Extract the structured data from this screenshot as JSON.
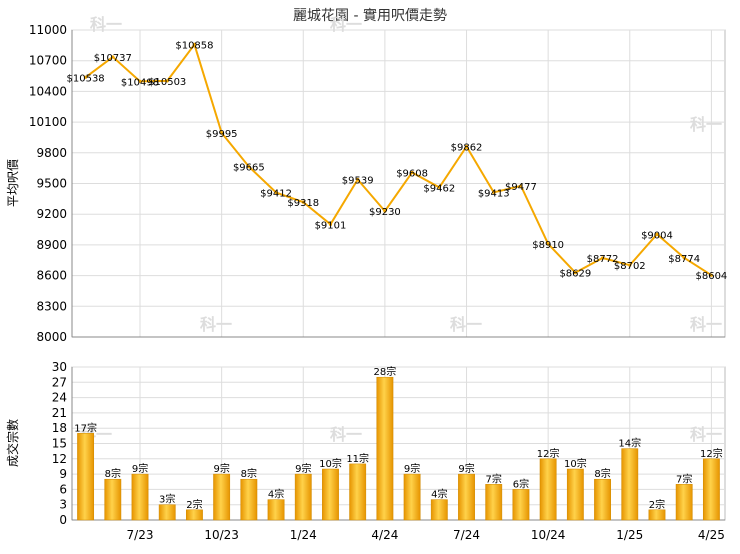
{
  "title": "麗城花園 - 實用呎價走勢",
  "chart_data": [
    {
      "type": "line",
      "ylabel": "平均呎價",
      "ylim": [
        8000,
        11000
      ],
      "yticks": [
        8000,
        8300,
        8600,
        8900,
        9200,
        9500,
        9800,
        10100,
        10400,
        10700,
        11000
      ],
      "color": "#f5a800",
      "values": [
        10538,
        10737,
        10498,
        10503,
        10858,
        9995,
        9665,
        9412,
        9318,
        9101,
        9539,
        9230,
        9608,
        9462,
        9862,
        9413,
        9477,
        8910,
        8629,
        8772,
        8702,
        9004,
        8774,
        8604
      ],
      "point_labels": [
        "$10538",
        "$10737",
        "$10498",
        "$10503",
        "$10858",
        "$9995",
        "$9665",
        "$9412",
        "$9318",
        "$9101",
        "$9539",
        "$9230",
        "$9608",
        "$9462",
        "$9862",
        "$9413",
        "$9477",
        "$8910",
        "$8629",
        "$8772",
        "$8702",
        "$9004",
        "$8774",
        "$8604"
      ]
    },
    {
      "type": "bar",
      "ylabel": "成交宗數",
      "ylim": [
        0,
        30
      ],
      "yticks": [
        0,
        3,
        6,
        9,
        12,
        15,
        18,
        21,
        24,
        27,
        30
      ],
      "color": "#f5a800",
      "values": [
        17,
        8,
        9,
        3,
        2,
        9,
        8,
        4,
        9,
        10,
        11,
        28,
        9,
        4,
        9,
        7,
        6,
        12,
        10,
        8,
        14,
        2,
        7,
        12
      ],
      "bar_labels": [
        "17宗",
        "8宗",
        "9宗",
        "3宗",
        "2宗",
        "9宗",
        "8宗",
        "4宗",
        "9宗",
        "10宗",
        "11宗",
        "28宗",
        "9宗",
        "4宗",
        "9宗",
        "7宗",
        "6宗",
        "12宗",
        "10宗",
        "8宗",
        "14宗",
        "2宗",
        "7宗",
        "12宗"
      ]
    }
  ],
  "xticks": [
    {
      "index": 2,
      "label": "7/23"
    },
    {
      "index": 5,
      "label": "10/23"
    },
    {
      "index": 8,
      "label": "1/24"
    },
    {
      "index": 11,
      "label": "4/24"
    },
    {
      "index": 14,
      "label": "7/24"
    },
    {
      "index": 17,
      "label": "10/24"
    },
    {
      "index": 20,
      "label": "1/25"
    },
    {
      "index": 23,
      "label": "4/25"
    }
  ],
  "watermark": "科一"
}
